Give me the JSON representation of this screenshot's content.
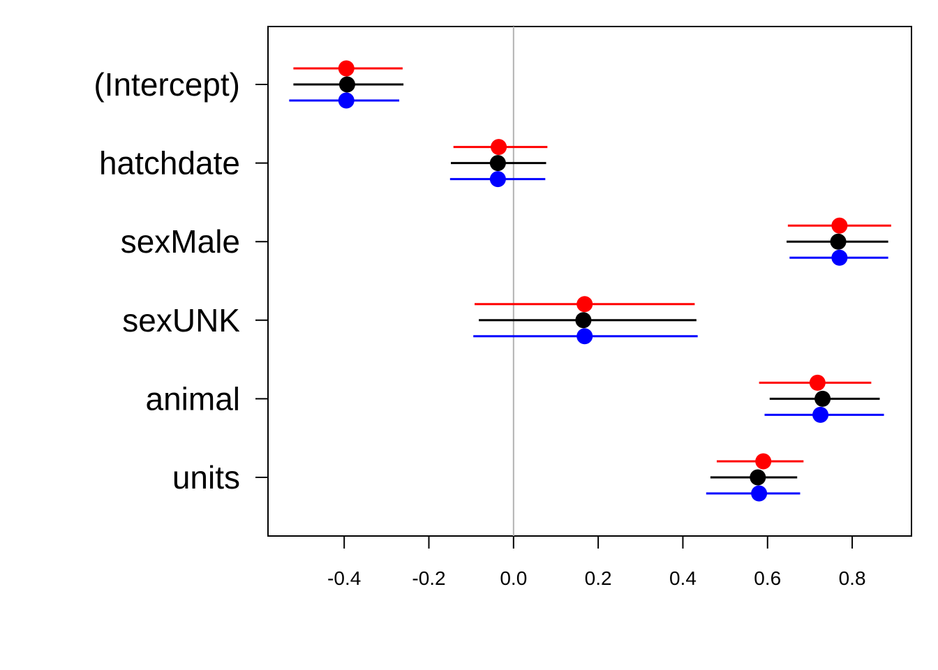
{
  "chart_data": {
    "type": "scatter",
    "title": "",
    "xlabel": "",
    "ylabel": "",
    "xlim": [
      -0.58,
      0.94
    ],
    "x_ticks": [
      -0.4,
      -0.2,
      0.0,
      0.2,
      0.4,
      0.6,
      0.8
    ],
    "x_tick_labels": [
      "-0.4",
      "-0.2",
      "0.0",
      "0.2",
      "0.4",
      "0.6",
      "0.8"
    ],
    "reference_line_x": 0,
    "reference_line_color": "#b3b3b3",
    "grid": false,
    "legend": "none",
    "categories": [
      "(Intercept)",
      "hatchdate",
      "sexMale",
      "sexUNK",
      "animal",
      "units"
    ],
    "series": [
      {
        "color": "#ff0000",
        "estimate": [
          -0.395,
          -0.035,
          0.77,
          0.168,
          0.718,
          0.59
        ],
        "lower": [
          -0.52,
          -0.142,
          0.648,
          -0.092,
          0.58,
          0.48
        ],
        "upper": [
          -0.262,
          0.08,
          0.892,
          0.428,
          0.845,
          0.685
        ]
      },
      {
        "color": "#000000",
        "estimate": [
          -0.393,
          -0.037,
          0.767,
          0.165,
          0.73,
          0.577
        ],
        "lower": [
          -0.52,
          -0.148,
          0.645,
          -0.082,
          0.605,
          0.465
        ],
        "upper": [
          -0.26,
          0.077,
          0.885,
          0.432,
          0.865,
          0.67
        ]
      },
      {
        "color": "#0000ff",
        "estimate": [
          -0.395,
          -0.037,
          0.77,
          0.168,
          0.725,
          0.58
        ],
        "lower": [
          -0.53,
          -0.15,
          0.652,
          -0.095,
          0.593,
          0.455
        ],
        "upper": [
          -0.27,
          0.075,
          0.885,
          0.435,
          0.875,
          0.677
        ]
      }
    ]
  }
}
